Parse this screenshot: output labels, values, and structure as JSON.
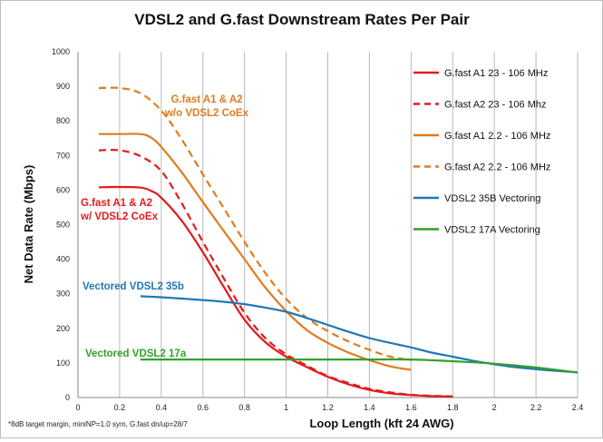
{
  "chart_data": {
    "type": "line",
    "title": "VDSL2 and G.fast Downstream Rates Per Pair",
    "xlabel": "Loop Length (kft 24 AWG)",
    "ylabel": "Net Data Rate (Mbps)",
    "xlim": [
      0,
      2.4
    ],
    "ylim": [
      0,
      1000
    ],
    "xticks": [
      0,
      0.2,
      0.4,
      0.6,
      0.8,
      1,
      1.2,
      1.4,
      1.6,
      1.8,
      2,
      2.2,
      2.4
    ],
    "yticks": [
      0,
      100,
      200,
      300,
      400,
      500,
      600,
      700,
      800,
      900,
      1000
    ],
    "grid": "vertical",
    "legend_position": "right",
    "series": [
      {
        "name": "G.fast A1 23 - 106 MHz",
        "color": "#e31a1c",
        "dash": "solid",
        "points": [
          [
            0.1,
            608
          ],
          [
            0.2,
            609
          ],
          [
            0.3,
            607
          ],
          [
            0.35,
            598
          ],
          [
            0.4,
            578
          ],
          [
            0.5,
            510
          ],
          [
            0.6,
            420
          ],
          [
            0.7,
            320
          ],
          [
            0.8,
            225
          ],
          [
            0.9,
            160
          ],
          [
            1.0,
            118
          ],
          [
            1.1,
            88
          ],
          [
            1.2,
            60
          ],
          [
            1.3,
            38
          ],
          [
            1.4,
            22
          ],
          [
            1.5,
            12
          ],
          [
            1.6,
            7
          ],
          [
            1.7,
            4
          ],
          [
            1.8,
            3
          ]
        ]
      },
      {
        "name": "G.fast A2 23 - 106 Mhz",
        "color": "#e31a1c",
        "dash": "dashed",
        "points": [
          [
            0.1,
            715
          ],
          [
            0.2,
            715
          ],
          [
            0.3,
            698
          ],
          [
            0.4,
            655
          ],
          [
            0.5,
            560
          ],
          [
            0.6,
            450
          ],
          [
            0.7,
            345
          ],
          [
            0.8,
            245
          ],
          [
            0.9,
            172
          ],
          [
            1.0,
            125
          ],
          [
            1.1,
            92
          ],
          [
            1.2,
            62
          ],
          [
            1.3,
            42
          ],
          [
            1.4,
            25
          ],
          [
            1.5,
            15
          ],
          [
            1.6,
            8
          ],
          [
            1.7,
            5
          ],
          [
            1.8,
            3
          ]
        ]
      },
      {
        "name": "G.fast A1 2.2 - 106 MHz",
        "color": "#e07b1e",
        "dash": "solid",
        "points": [
          [
            0.1,
            762
          ],
          [
            0.2,
            762
          ],
          [
            0.3,
            762
          ],
          [
            0.35,
            752
          ],
          [
            0.4,
            725
          ],
          [
            0.5,
            650
          ],
          [
            0.6,
            565
          ],
          [
            0.7,
            482
          ],
          [
            0.8,
            400
          ],
          [
            0.9,
            318
          ],
          [
            1.0,
            250
          ],
          [
            1.1,
            195
          ],
          [
            1.2,
            158
          ],
          [
            1.3,
            130
          ],
          [
            1.4,
            108
          ],
          [
            1.5,
            90
          ],
          [
            1.6,
            80
          ]
        ]
      },
      {
        "name": "G.fast A2 2.2 - 106 MHz",
        "color": "#e07b1e",
        "dash": "dashed",
        "points": [
          [
            0.1,
            895
          ],
          [
            0.2,
            895
          ],
          [
            0.3,
            880
          ],
          [
            0.4,
            830
          ],
          [
            0.5,
            745
          ],
          [
            0.6,
            645
          ],
          [
            0.7,
            548
          ],
          [
            0.8,
            450
          ],
          [
            0.9,
            360
          ],
          [
            1.0,
            285
          ],
          [
            1.1,
            230
          ],
          [
            1.2,
            192
          ],
          [
            1.3,
            162
          ],
          [
            1.4,
            138
          ],
          [
            1.5,
            118
          ],
          [
            1.6,
            108
          ]
        ]
      },
      {
        "name": "VDSL2 35B Vectoring",
        "color": "#1f78b4",
        "dash": "solid",
        "points": [
          [
            0.3,
            293
          ],
          [
            0.4,
            290
          ],
          [
            0.5,
            286
          ],
          [
            0.6,
            282
          ],
          [
            0.7,
            277
          ],
          [
            0.8,
            270
          ],
          [
            0.9,
            260
          ],
          [
            1.0,
            248
          ],
          [
            1.1,
            230
          ],
          [
            1.2,
            210
          ],
          [
            1.3,
            190
          ],
          [
            1.4,
            172
          ],
          [
            1.5,
            158
          ],
          [
            1.6,
            145
          ],
          [
            1.7,
            130
          ],
          [
            1.8,
            118
          ],
          [
            1.9,
            106
          ],
          [
            2.0,
            96
          ],
          [
            2.1,
            88
          ],
          [
            2.2,
            82
          ],
          [
            2.3,
            77
          ],
          [
            2.4,
            73
          ]
        ]
      },
      {
        "name": "VDSL2 17A Vectoring",
        "color": "#33a02c",
        "dash": "solid",
        "points": [
          [
            0.3,
            110
          ],
          [
            0.5,
            110
          ],
          [
            1.0,
            110
          ],
          [
            1.4,
            110
          ],
          [
            1.6,
            110
          ],
          [
            1.8,
            105
          ],
          [
            2.0,
            98
          ],
          [
            2.2,
            87
          ],
          [
            2.4,
            72
          ]
        ]
      }
    ],
    "annotations": [
      {
        "lines": [
          "G.fast A1 & A2",
          "w/o VDSL2 CoEx"
        ],
        "color": "#e07b1e"
      },
      {
        "lines": [
          "G.fast A1 & A2",
          "w/ VDSL2 CoEx"
        ],
        "color": "#e31a1c"
      },
      {
        "lines": [
          "Vectored VDSL2 35b"
        ],
        "color": "#1f78b4"
      },
      {
        "lines": [
          "Vectored VDSL2 17a"
        ],
        "color": "#33a02c"
      }
    ],
    "footnote": "*8dB target margin, miniNP=1.0 sym, G.fast dn/up=28/7"
  }
}
